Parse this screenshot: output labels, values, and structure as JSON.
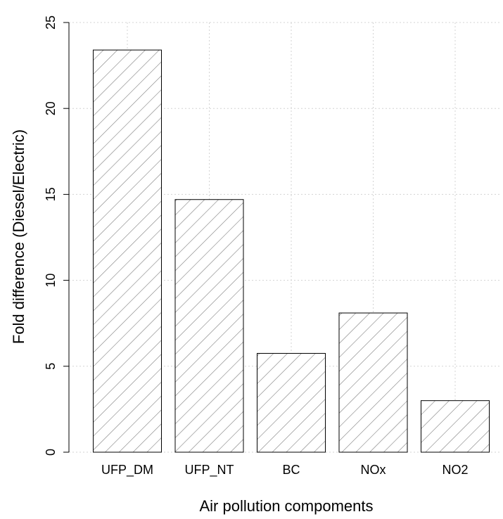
{
  "chart_data": {
    "type": "bar",
    "title": "",
    "xlabel": "Air pollution compoments",
    "ylabel": "Fold difference (Diesel/Electric)",
    "categories": [
      "UFP_DM",
      "UFP_NT",
      "BC",
      "NOx",
      "NO2"
    ],
    "values": [
      23.4,
      14.7,
      5.75,
      8.1,
      3.0
    ],
    "ylim": [
      0,
      25
    ],
    "yticks": [
      "0",
      "5",
      "10",
      "15",
      "20",
      "25"
    ],
    "grid": true,
    "bar_fill": "diagonal hatching",
    "hatch_color": "#7f7f7f",
    "bar_background": "#ffffff",
    "grid_color": "#d3d3d3"
  }
}
